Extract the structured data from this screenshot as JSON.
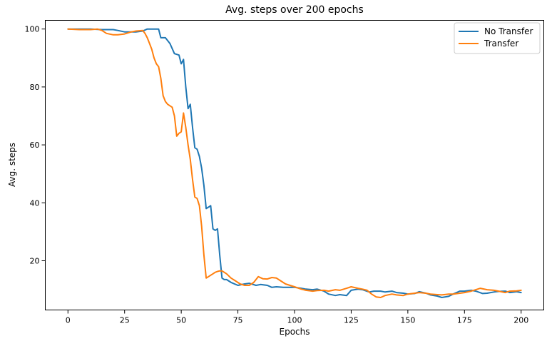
{
  "chart_data": {
    "type": "line",
    "title": "Avg. steps over 200 epochs",
    "xlabel": "Epochs",
    "ylabel": "Avg. steps",
    "xlim": [
      -10,
      210
    ],
    "ylim": [
      3,
      103
    ],
    "xticks": [
      0,
      25,
      50,
      75,
      100,
      125,
      150,
      175,
      200
    ],
    "yticks": [
      20,
      40,
      60,
      80,
      100
    ],
    "grid": false,
    "legend_position": "top-right",
    "series": [
      {
        "name": "No Transfer",
        "color": "#1f77b4",
        "points": [
          [
            0,
            100
          ],
          [
            5,
            100
          ],
          [
            10,
            100
          ],
          [
            15,
            99.8
          ],
          [
            20,
            99.8
          ],
          [
            22,
            99.5
          ],
          [
            25,
            99
          ],
          [
            30,
            99
          ],
          [
            33,
            99.3
          ],
          [
            35,
            100
          ],
          [
            38,
            100
          ],
          [
            40,
            100
          ],
          [
            41,
            97
          ],
          [
            43,
            97
          ],
          [
            45,
            95
          ],
          [
            47,
            91.5
          ],
          [
            49,
            91
          ],
          [
            50,
            88
          ],
          [
            51,
            89.5
          ],
          [
            52,
            80
          ],
          [
            53,
            72.5
          ],
          [
            54,
            74
          ],
          [
            55,
            66
          ],
          [
            56,
            59
          ],
          [
            57,
            58.5
          ],
          [
            58,
            56
          ],
          [
            59,
            52
          ],
          [
            60,
            46
          ],
          [
            61,
            38
          ],
          [
            62,
            38.5
          ],
          [
            63,
            39
          ],
          [
            64,
            31
          ],
          [
            65,
            30.5
          ],
          [
            66,
            31
          ],
          [
            67,
            22
          ],
          [
            68,
            14
          ],
          [
            69,
            13.5
          ],
          [
            70,
            13.5
          ],
          [
            72,
            12.5
          ],
          [
            75,
            11.5
          ],
          [
            78,
            12
          ],
          [
            80,
            12.2
          ],
          [
            83,
            11.5
          ],
          [
            85,
            11.8
          ],
          [
            88,
            11.5
          ],
          [
            90,
            10.8
          ],
          [
            92,
            11
          ],
          [
            95,
            10.8
          ],
          [
            100,
            10.8
          ],
          [
            103,
            10.5
          ],
          [
            105,
            10.2
          ],
          [
            108,
            10
          ],
          [
            110,
            10.2
          ],
          [
            113,
            9.5
          ],
          [
            115,
            8.5
          ],
          [
            118,
            8
          ],
          [
            120,
            8.3
          ],
          [
            123,
            8
          ],
          [
            125,
            9.8
          ],
          [
            128,
            10.2
          ],
          [
            130,
            10
          ],
          [
            133,
            9.2
          ],
          [
            135,
            9.5
          ],
          [
            138,
            9.5
          ],
          [
            140,
            9.2
          ],
          [
            143,
            9.5
          ],
          [
            145,
            9
          ],
          [
            148,
            8.8
          ],
          [
            150,
            8.5
          ],
          [
            153,
            8.7
          ],
          [
            155,
            9.3
          ],
          [
            158,
            8.8
          ],
          [
            160,
            8.2
          ],
          [
            163,
            7.8
          ],
          [
            165,
            7.3
          ],
          [
            168,
            7.7
          ],
          [
            170,
            8.5
          ],
          [
            173,
            9.5
          ],
          [
            175,
            9.5
          ],
          [
            178,
            9.8
          ],
          [
            180,
            9.5
          ],
          [
            183,
            8.7
          ],
          [
            185,
            8.8
          ],
          [
            188,
            9.2
          ],
          [
            190,
            9.4
          ],
          [
            193,
            9.5
          ],
          [
            195,
            9
          ],
          [
            198,
            9.3
          ],
          [
            200,
            9
          ]
        ]
      },
      {
        "name": "Transfer",
        "color": "#ff7f0e",
        "points": [
          [
            0,
            100
          ],
          [
            5,
            99.8
          ],
          [
            10,
            99.8
          ],
          [
            13,
            100
          ],
          [
            15,
            99.5
          ],
          [
            17,
            98.5
          ],
          [
            20,
            98
          ],
          [
            22,
            98
          ],
          [
            25,
            98.3
          ],
          [
            28,
            99
          ],
          [
            30,
            99.3
          ],
          [
            33,
            99.5
          ],
          [
            34,
            98.5
          ],
          [
            35,
            97
          ],
          [
            36,
            95
          ],
          [
            37,
            93
          ],
          [
            38,
            90
          ],
          [
            39,
            88
          ],
          [
            40,
            87
          ],
          [
            41,
            83
          ],
          [
            42,
            77
          ],
          [
            43,
            75
          ],
          [
            44,
            74
          ],
          [
            45,
            73.5
          ],
          [
            46,
            73
          ],
          [
            47,
            70
          ],
          [
            48,
            63
          ],
          [
            49,
            64
          ],
          [
            50,
            64.5
          ],
          [
            51,
            71
          ],
          [
            52,
            66
          ],
          [
            53,
            60
          ],
          [
            54,
            55
          ],
          [
            55,
            48
          ],
          [
            56,
            42
          ],
          [
            57,
            41.5
          ],
          [
            58,
            39
          ],
          [
            59,
            32
          ],
          [
            60,
            22
          ],
          [
            61,
            14
          ],
          [
            62,
            14.5
          ],
          [
            63,
            15
          ],
          [
            64,
            15.5
          ],
          [
            65,
            16
          ],
          [
            66,
            16.3
          ],
          [
            67,
            16.5
          ],
          [
            68,
            16.5
          ],
          [
            70,
            15.5
          ],
          [
            72,
            14
          ],
          [
            74,
            13
          ],
          [
            76,
            12
          ],
          [
            78,
            11.5
          ],
          [
            80,
            11.5
          ],
          [
            82,
            12.5
          ],
          [
            84,
            14.5
          ],
          [
            86,
            13.8
          ],
          [
            88,
            13.7
          ],
          [
            90,
            14.2
          ],
          [
            92,
            14
          ],
          [
            94,
            13
          ],
          [
            96,
            12
          ],
          [
            98,
            11.5
          ],
          [
            100,
            11
          ],
          [
            103,
            10.2
          ],
          [
            105,
            9.8
          ],
          [
            108,
            9.5
          ],
          [
            110,
            9.7
          ],
          [
            113,
            9.8
          ],
          [
            115,
            9.5
          ],
          [
            118,
            10
          ],
          [
            120,
            9.8
          ],
          [
            123,
            10.5
          ],
          [
            125,
            11
          ],
          [
            128,
            10.5
          ],
          [
            130,
            10.2
          ],
          [
            132,
            9.8
          ],
          [
            134,
            8.5
          ],
          [
            136,
            7.5
          ],
          [
            138,
            7.3
          ],
          [
            140,
            8
          ],
          [
            143,
            8.5
          ],
          [
            145,
            8.2
          ],
          [
            148,
            8
          ],
          [
            150,
            8.5
          ],
          [
            153,
            8.8
          ],
          [
            155,
            9
          ],
          [
            158,
            8.8
          ],
          [
            160,
            8.5
          ],
          [
            163,
            8.3
          ],
          [
            165,
            8.2
          ],
          [
            168,
            8.5
          ],
          [
            170,
            8.5
          ],
          [
            173,
            8.8
          ],
          [
            175,
            9
          ],
          [
            178,
            9.5
          ],
          [
            180,
            10
          ],
          [
            182,
            10.5
          ],
          [
            185,
            10
          ],
          [
            188,
            9.8
          ],
          [
            190,
            9.5
          ],
          [
            193,
            9
          ],
          [
            195,
            9.5
          ],
          [
            198,
            9.6
          ],
          [
            200,
            9.8
          ]
        ]
      }
    ]
  }
}
